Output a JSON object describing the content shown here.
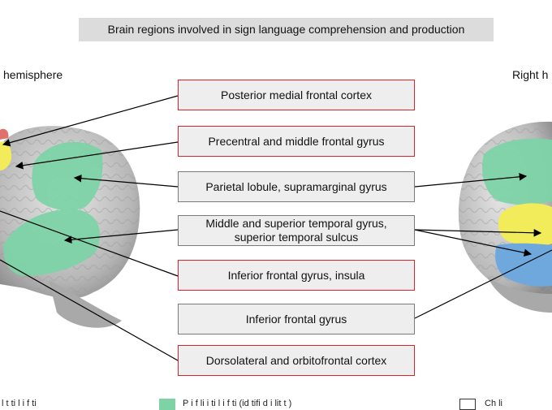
{
  "title": "Brain regions involved in sign language comprehension and production",
  "left_hemisphere_label": "hemisphere",
  "right_hemisphere_label": "Right h",
  "regions": [
    {
      "label": "Posterior medial frontal cortex"
    },
    {
      "label": "Precentral and middle frontal gyrus"
    },
    {
      "label": "Parietal lobule, supramarginal gyrus"
    },
    {
      "label": "Middle and superior temporal gyrus, superior temporal sulcus"
    },
    {
      "label": "Inferior frontal gyrus, insula"
    },
    {
      "label": "Inferior frontal gyrus"
    },
    {
      "label": "Dorsolateral and orbitofrontal cortex"
    }
  ],
  "legend": {
    "item1_text": "l t ti l i f   ti",
    "item2_text": "P       i   f li     i ti l i f   ti  (id  tifi d i  lit   t   )",
    "item3_text": "Ch       li"
  },
  "colors": {
    "green": "#7dd3a6",
    "yellow": "#f2ec5a",
    "blue": "#6fa8dc",
    "red_border": "#d9232a"
  }
}
